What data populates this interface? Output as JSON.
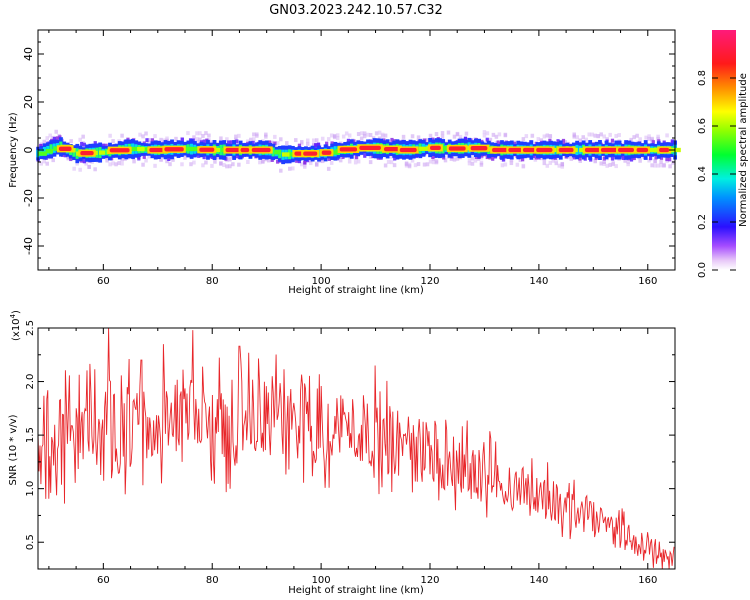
{
  "title": "GN03.2023.242.10.57.C32",
  "chart_data": [
    {
      "type": "heatmap",
      "xlabel": "Height of straight line (km)",
      "ylabel": "Frequency (Hz)",
      "xlim": [
        48,
        165
      ],
      "ylim": [
        -50,
        50
      ],
      "x_ticks": [
        60,
        80,
        100,
        120,
        140,
        160
      ],
      "y_ticks": [
        40,
        20,
        0,
        -20,
        -40
      ],
      "band_center_hz": [
        [
          48,
          -1.5
        ],
        [
          52,
          1.5
        ],
        [
          55,
          -1.5
        ],
        [
          60,
          -1
        ],
        [
          65,
          0.5
        ],
        [
          70,
          0
        ],
        [
          75,
          0.5
        ],
        [
          80,
          0
        ],
        [
          85,
          0
        ],
        [
          90,
          0
        ],
        [
          93,
          -2
        ],
        [
          96,
          -1.5
        ],
        [
          100,
          -1.5
        ],
        [
          104,
          0
        ],
        [
          108,
          1
        ],
        [
          112,
          0.5
        ],
        [
          116,
          0
        ],
        [
          120,
          1
        ],
        [
          124,
          0.5
        ],
        [
          128,
          1
        ],
        [
          132,
          0
        ],
        [
          136,
          0
        ],
        [
          140,
          0
        ],
        [
          144,
          0
        ],
        [
          148,
          0
        ],
        [
          152,
          0
        ],
        [
          156,
          0
        ],
        [
          160,
          0
        ],
        [
          164,
          0
        ]
      ],
      "hotspots_km": [
        53,
        57,
        63,
        70,
        73,
        79,
        84,
        86,
        89,
        96,
        98,
        101,
        105,
        109,
        113,
        116,
        121,
        125,
        129,
        133,
        136,
        139,
        141,
        145,
        150,
        153,
        156,
        159,
        163
      ],
      "colorbar": {
        "label": "Normalized spectral amplitude",
        "range": [
          0,
          1
        ],
        "ticks": [
          "0.0",
          "0.2",
          "0.4",
          "0.6",
          "0.8"
        ]
      }
    },
    {
      "type": "line",
      "xlabel": "Height of straight line (km)",
      "ylabel": "SNR (10 * v/v)",
      "exponent_label": "(x10",
      "exponent_power": "4",
      "exponent_close": ")",
      "xlim": [
        48,
        165
      ],
      "ylim": [
        0.25,
        2.5
      ],
      "x_ticks": [
        60,
        80,
        100,
        120,
        140,
        160
      ],
      "y_ticks": [
        "2.5",
        "2.0",
        "1.5",
        "1.0",
        "0.5"
      ],
      "line_color": "#e8262a",
      "envelope": [
        [
          48,
          1.3,
          0.45
        ],
        [
          52,
          1.4,
          0.45
        ],
        [
          56,
          1.45,
          0.45
        ],
        [
          60,
          1.5,
          0.45
        ],
        [
          65,
          1.55,
          0.42
        ],
        [
          70,
          1.6,
          0.42
        ],
        [
          75,
          1.6,
          0.42
        ],
        [
          80,
          1.6,
          0.42
        ],
        [
          85,
          1.62,
          0.4
        ],
        [
          90,
          1.65,
          0.38
        ],
        [
          95,
          1.65,
          0.38
        ],
        [
          100,
          1.6,
          0.38
        ],
        [
          105,
          1.58,
          0.36
        ],
        [
          110,
          1.5,
          0.35
        ],
        [
          115,
          1.42,
          0.32
        ],
        [
          120,
          1.32,
          0.3
        ],
        [
          125,
          1.22,
          0.28
        ],
        [
          130,
          1.12,
          0.26
        ],
        [
          135,
          1.02,
          0.25
        ],
        [
          140,
          0.92,
          0.23
        ],
        [
          145,
          0.82,
          0.2
        ],
        [
          150,
          0.7,
          0.18
        ],
        [
          155,
          0.58,
          0.15
        ],
        [
          160,
          0.45,
          0.12
        ],
        [
          165,
          0.35,
          0.08
        ]
      ],
      "peaks": [
        [
          61,
          2.5
        ],
        [
          76.5,
          2.48
        ],
        [
          71,
          2.35
        ],
        [
          85,
          2.33
        ],
        [
          91,
          2.05
        ],
        [
          110,
          2.15
        ],
        [
          67,
          2.2
        ]
      ]
    }
  ]
}
